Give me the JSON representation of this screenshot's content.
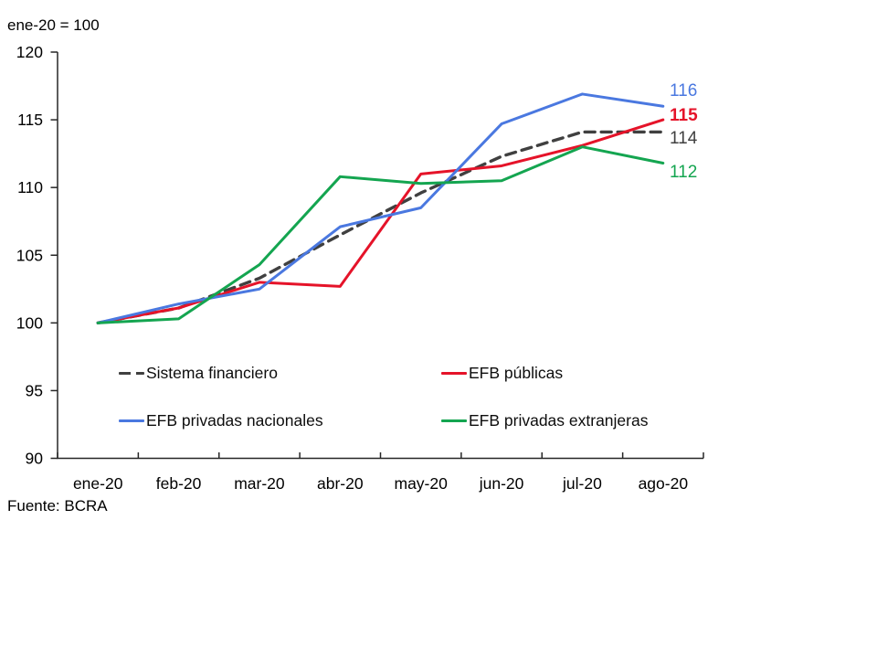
{
  "chart_data": {
    "type": "line",
    "note": "ene-20 = 100",
    "source": "Fuente: BCRA",
    "categories": [
      "ene-20",
      "feb-20",
      "mar-20",
      "abr-20",
      "may-20",
      "jun-20",
      "jul-20",
      "ago-20"
    ],
    "y_ticks": [
      90,
      95,
      100,
      105,
      110,
      115,
      120
    ],
    "ylim": [
      90,
      120
    ],
    "grid": false,
    "legend_position": "inside-bottom-left-two-columns",
    "axis_color": "#262626",
    "series": [
      {
        "name": "Sistema financiero",
        "color": "#404040",
        "style": "dashed",
        "end_label": "114",
        "values": [
          100,
          101.1,
          103.3,
          106.5,
          109.6,
          112.3,
          114.1,
          114.1
        ]
      },
      {
        "name": "EFB públicas",
        "color": "#e51329",
        "style": "solid",
        "end_label": "115",
        "values": [
          100,
          101.1,
          103.0,
          102.7,
          111.0,
          111.6,
          113.1,
          115.0
        ]
      },
      {
        "name": "EFB privadas nacionales",
        "color": "#4a78e0",
        "style": "solid",
        "end_label": "116",
        "values": [
          100,
          101.4,
          102.5,
          107.1,
          108.5,
          114.7,
          116.9,
          116.0
        ]
      },
      {
        "name": "EFB privadas extranjeras",
        "color": "#14a550",
        "style": "solid",
        "end_label": "112",
        "values": [
          100,
          100.3,
          104.3,
          110.8,
          110.3,
          110.5,
          113.0,
          111.8
        ]
      }
    ]
  }
}
